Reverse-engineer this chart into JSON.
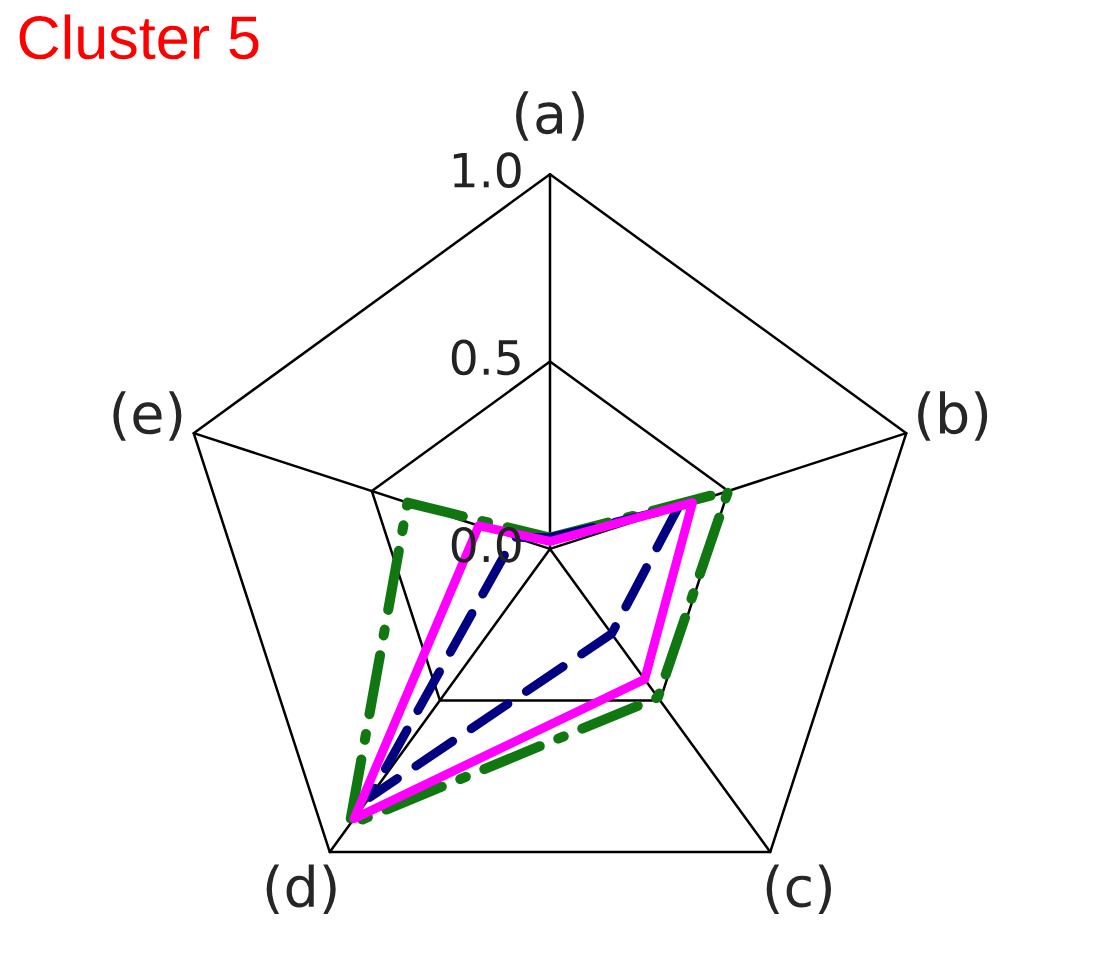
{
  "chart_data": {
    "type": "radar",
    "title": "Cluster 5",
    "categories": [
      "(a)",
      "(b)",
      "(c)",
      "(d)",
      "(e)"
    ],
    "ylim": [
      0,
      1
    ],
    "yticks": [
      {
        "value": 0,
        "label": "0.0"
      },
      0.5,
      {
        "value": 1,
        "label": "1.0"
      }
    ],
    "grid": true,
    "series": [
      {
        "color": "#117711",
        "line_style": "dashdot",
        "values": [
          0.03,
          0.5,
          0.49,
          0.91,
          0.4
        ]
      },
      {
        "color": "#000080",
        "line_style": "dashed",
        "values": [
          0.03,
          0.36,
          0.28,
          0.82,
          0.1
        ]
      },
      {
        "color": "#ff00ff",
        "line_style": "solid",
        "values": [
          0.02,
          0.4,
          0.43,
          0.89,
          0.2
        ]
      }
    ]
  }
}
